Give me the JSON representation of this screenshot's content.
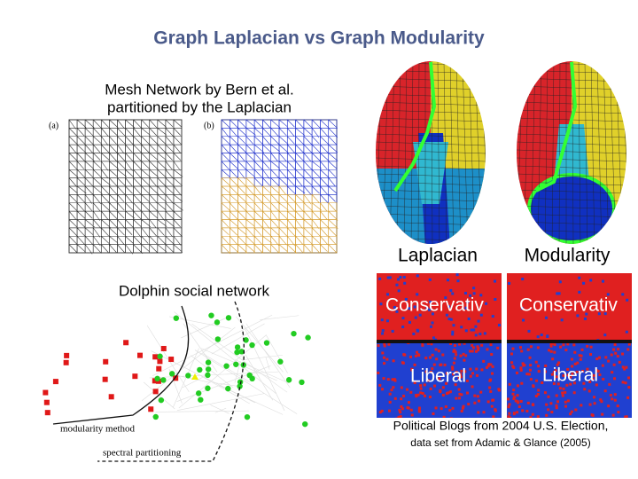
{
  "header": {
    "title": "Graph Laplacian vs Graph Modularity"
  },
  "mesh": {
    "caption": [
      "Mesh Network by Bern et al.",
      "partitioned by the Laplacian"
    ],
    "panel_labels": [
      "(a)",
      "(b)"
    ]
  },
  "faces": {
    "labels": [
      "Laplacian",
      "Modularity"
    ]
  },
  "dolphin": {
    "caption": "Dolphin social network",
    "legend": [
      "modularity method",
      "spectral partitioning"
    ]
  },
  "blogs": {
    "labels": [
      [
        "Conservativ",
        "Liberal"
      ],
      [
        "Conservativ",
        "Liberal"
      ]
    ],
    "caption": [
      "Political Blogs from 2004 U.S. Election,",
      "data set from Adamic & Glance (2005)"
    ]
  }
}
